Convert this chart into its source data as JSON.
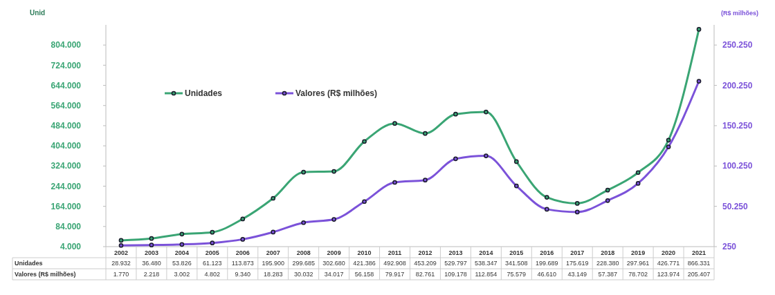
{
  "chart_data": {
    "type": "line",
    "ylabel": "Unid",
    "y2label": "(R$ milhões)",
    "categories": [
      "2002",
      "2003",
      "2004",
      "2005",
      "2006",
      "2007",
      "2008",
      "2009",
      "2010",
      "2011",
      "2012",
      "2013",
      "2014",
      "2015",
      "2016",
      "2017",
      "2018",
      "2019",
      "2020",
      "2021"
    ],
    "series": [
      {
        "name": "Unidades",
        "color": "#3aa574",
        "values": [
          28932,
          36480,
          53826,
          61123,
          113873,
          195900,
          299685,
          302680,
          421386,
          492908,
          453209,
          529797,
          538347,
          341508,
          199689,
          175619,
          228380,
          297961,
          426771,
          866331
        ],
        "value_labels": [
          "28.932",
          "36.480",
          "53.826",
          "61.123",
          "113.873",
          "195.900",
          "299.685",
          "302.680",
          "421.386",
          "492.908",
          "453.209",
          "529.797",
          "538.347",
          "341.508",
          "199.689",
          "175.619",
          "228.380",
          "297.961",
          "426.771",
          "866.331"
        ]
      },
      {
        "name": "Valores (R$ milhões)",
        "color": "#7b52d9",
        "axis": "y2",
        "values": [
          1770,
          2218,
          3002,
          4802,
          9340,
          18283,
          30032,
          34017,
          56158,
          79917,
          82761,
          109178,
          112854,
          75579,
          46610,
          43149,
          57387,
          78702,
          123974,
          205407
        ],
        "value_labels": [
          "1.770",
          "2.218",
          "3.002",
          "4.802",
          "9.340",
          "18.283",
          "30.032",
          "34.017",
          "56.158",
          "79.917",
          "82.761",
          "109.178",
          "112.854",
          "75.579",
          "46.610",
          "43.149",
          "57.387",
          "78.702",
          "123.974",
          "205.407"
        ]
      }
    ],
    "ylim": [
      4000,
      884000
    ],
    "yticks": [
      {
        "value": 4000,
        "label": "4.000"
      },
      {
        "value": 84000,
        "label": "84.000"
      },
      {
        "value": 164000,
        "label": "164.000"
      },
      {
        "value": 244000,
        "label": "244.000"
      },
      {
        "value": 324000,
        "label": "324.000"
      },
      {
        "value": 404000,
        "label": "404.000"
      },
      {
        "value": 484000,
        "label": "484.000"
      },
      {
        "value": 564000,
        "label": "564.000"
      },
      {
        "value": 644000,
        "label": "644.000"
      },
      {
        "value": 724000,
        "label": "724.000"
      },
      {
        "value": 804000,
        "label": "804.000"
      }
    ],
    "y2lim": [
      250,
      275250
    ],
    "y2ticks": [
      250,
      {
        "value": 50250,
        "label": "50.250"
      },
      {
        "value": 100250,
        "label": "100.250"
      },
      {
        "value": 150250,
        "label": "150.250"
      },
      {
        "value": 200250,
        "label": "200.250"
      },
      {
        "value": 250250,
        "label": "250.250"
      }
    ],
    "marker": "circle",
    "legend": "top left",
    "grid": false
  }
}
